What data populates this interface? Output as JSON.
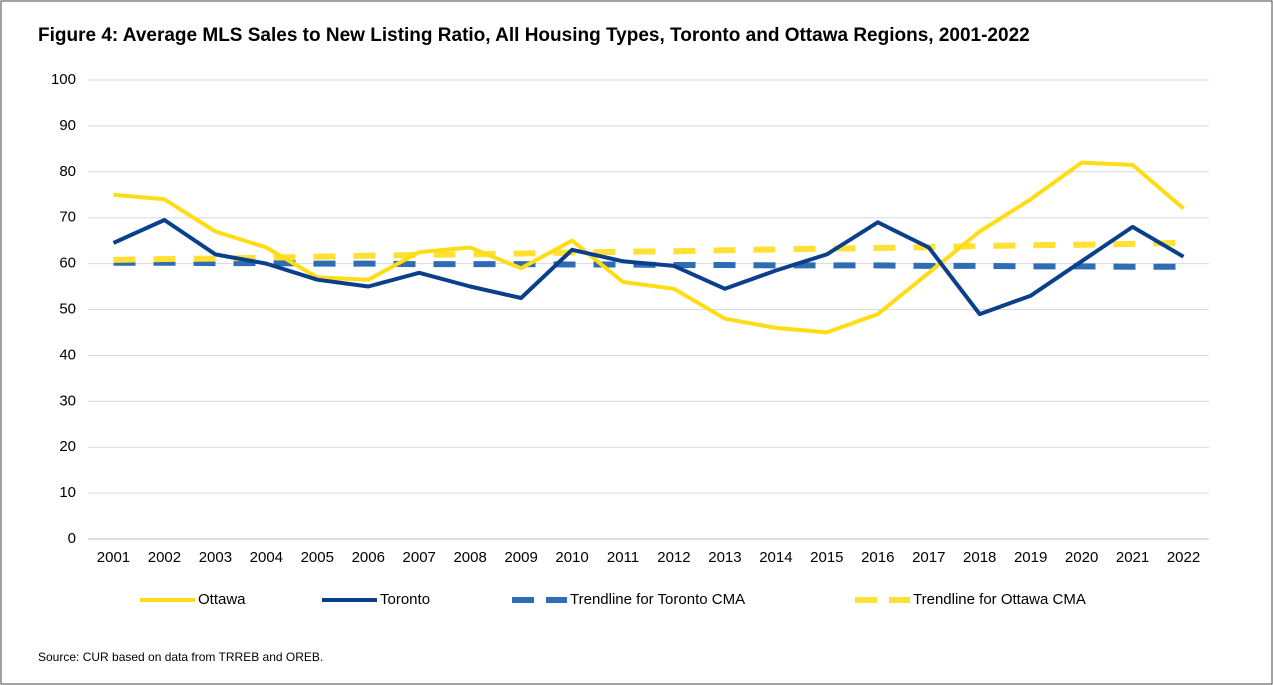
{
  "chart_data": {
    "type": "line",
    "title": "Figure 4: Average MLS Sales to New Listing Ratio, All Housing Types,  Toronto and Ottawa Regions, 2001-2022",
    "source": "Source: CUR based on data from TRREB and OREB.",
    "categories": [
      "2001",
      "2002",
      "2003",
      "2004",
      "2005",
      "2006",
      "2007",
      "2008",
      "2009",
      "2010",
      "2011",
      "2012",
      "2013",
      "2014",
      "2015",
      "2016",
      "2017",
      "2018",
      "2019",
      "2020",
      "2021",
      "2022"
    ],
    "series": [
      {
        "name": "Ottawa",
        "color": "#ffdc14",
        "dashed": false,
        "values": [
          75,
          74,
          67,
          63.5,
          57,
          56.5,
          62.5,
          63.5,
          59,
          65,
          56,
          54.5,
          48,
          46,
          45,
          49,
          58,
          67,
          74,
          82,
          81.5,
          72
        ]
      },
      {
        "name": "Toronto",
        "color": "#0a3f8c",
        "dashed": false,
        "values": [
          64.5,
          69.5,
          62,
          60,
          56.5,
          55,
          58,
          55,
          52.5,
          63,
          60.5,
          59.5,
          54.5,
          58.5,
          62,
          69,
          63.5,
          49,
          53,
          60.5,
          68,
          61.5
        ]
      },
      {
        "name": "Trendline for Toronto CMA",
        "color": "#2f6cb3",
        "dashed": true,
        "values": [
          60.2,
          60.2,
          60.1,
          60.1,
          60.0,
          60.0,
          59.9,
          59.9,
          59.9,
          59.8,
          59.8,
          59.7,
          59.7,
          59.6,
          59.6,
          59.6,
          59.5,
          59.5,
          59.4,
          59.4,
          59.3,
          59.3
        ]
      },
      {
        "name": "Trendline for Ottawa CMA",
        "color": "#ffe033",
        "dashed": true,
        "values": [
          60.8,
          61.0,
          61.1,
          61.3,
          61.5,
          61.7,
          61.9,
          62.0,
          62.2,
          62.4,
          62.6,
          62.7,
          62.9,
          63.1,
          63.3,
          63.4,
          63.6,
          63.8,
          64.0,
          64.1,
          64.3,
          64.5
        ]
      }
    ],
    "ylim": [
      0,
      100
    ],
    "yticks": [
      0,
      10,
      20,
      30,
      40,
      50,
      60,
      70,
      80,
      90,
      100
    ],
    "grid": true,
    "legend": "bottom"
  }
}
